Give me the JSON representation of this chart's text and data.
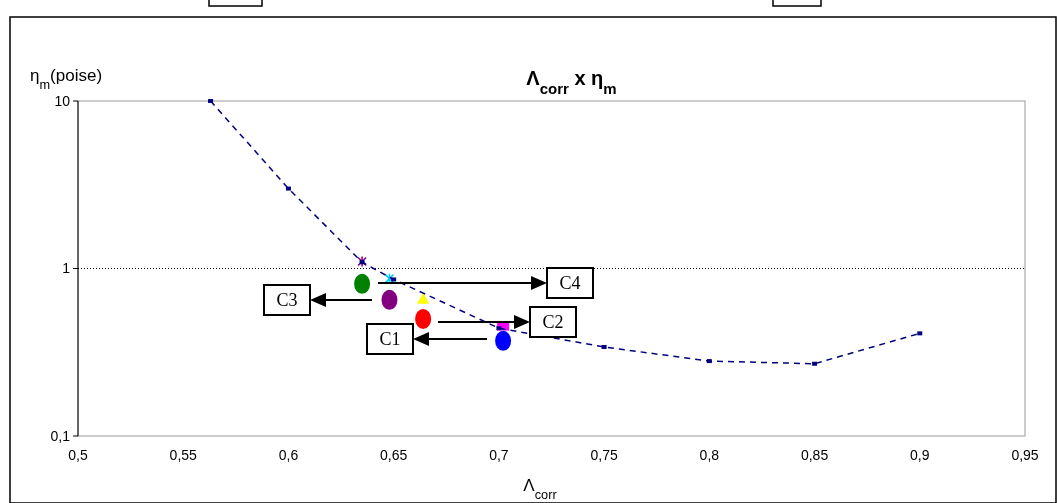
{
  "chart_data": {
    "type": "line",
    "title": "Λ$_{corr}$ x η$_{m}$",
    "xlabel": "Λ$_{corr}$",
    "ylabel": "η$_{m}$(poise)",
    "log": "y",
    "grid": "y",
    "line_style": "dashed",
    "xlim": [
      0.5,
      0.95
    ],
    "xticks": [
      {
        "value": 0.5,
        "label": "0,5"
      },
      {
        "value": 0.55,
        "label": "0,55"
      },
      {
        "value": 0.6,
        "label": "0,6"
      },
      {
        "value": 0.65,
        "label": "0,65"
      },
      {
        "value": 0.7,
        "label": "0,7"
      },
      {
        "value": 0.75,
        "label": "0,75"
      },
      {
        "value": 0.8,
        "label": "0,8"
      },
      {
        "value": 0.85,
        "label": "0,85"
      },
      {
        "value": 0.9,
        "label": "0,9"
      },
      {
        "value": 0.95,
        "label": "0,95"
      }
    ],
    "ylim": [
      0.1,
      10
    ],
    "yticks": [
      {
        "value": 0.1,
        "label": "0,1"
      },
      1,
      10
    ],
    "series": [
      {
        "color": "#000080",
        "marker": "square",
        "x": [
          0.563,
          0.6,
          0.635,
          0.65,
          0.7,
          0.75,
          0.8,
          0.85,
          0.9
        ],
        "values": [
          10,
          3.0,
          1.09,
          0.86,
          0.44,
          0.34,
          0.28,
          0.27,
          0.41
        ]
      },
      {
        "type": "scatter",
        "color": "#008000",
        "marker": "circle",
        "x": [
          0.635
        ],
        "values": [
          0.81
        ]
      },
      {
        "type": "scatter",
        "color": "#800080",
        "marker": "circle",
        "x": [
          0.648
        ],
        "values": [
          0.65
        ]
      },
      {
        "type": "scatter",
        "color": "#ffff00",
        "marker": "triangle",
        "x": [
          0.664
        ],
        "values": [
          0.66
        ]
      },
      {
        "type": "scatter",
        "color": "#ff0000",
        "marker": "circle",
        "x": [
          0.664
        ],
        "values": [
          0.5
        ]
      },
      {
        "type": "scatter",
        "color": "#ff00ff",
        "marker": "square",
        "x": [
          0.702
        ],
        "values": [
          0.45
        ]
      },
      {
        "type": "scatter",
        "color": "#0000ff",
        "marker": "circle",
        "x": [
          0.702
        ],
        "values": [
          0.37
        ]
      },
      {
        "type": "scatter",
        "color": "#800080",
        "marker": "cross",
        "x": [
          0.635
        ],
        "values": [
          1.1
        ]
      },
      {
        "type": "scatter",
        "color": "#00ccff",
        "marker": "cross",
        "x": [
          0.648
        ],
        "values": [
          0.87
        ]
      }
    ],
    "annotations": [
      "C1",
      "C2",
      "C3",
      "C4"
    ]
  }
}
